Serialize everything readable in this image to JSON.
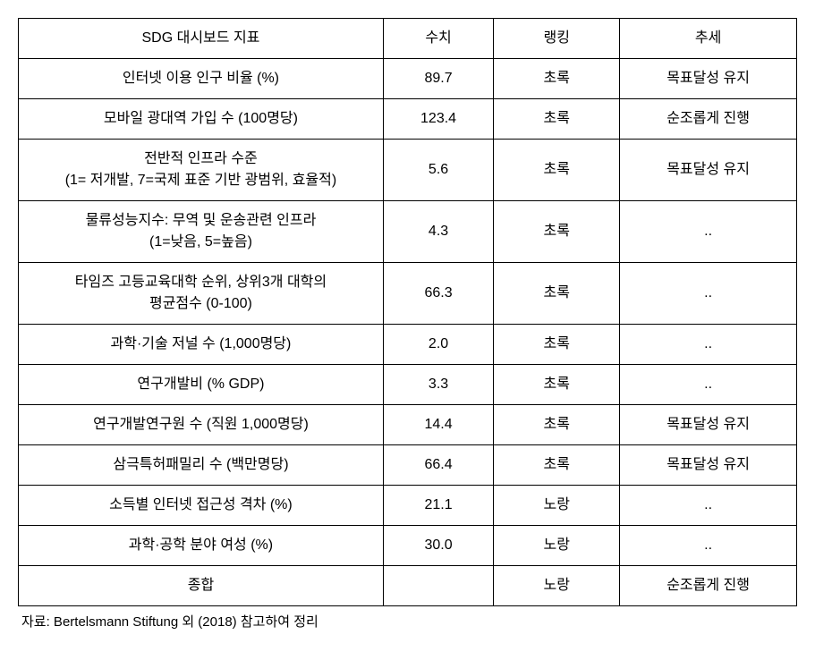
{
  "table": {
    "headers": {
      "indicator": "SDG 대시보드 지표",
      "value": "수치",
      "ranking": "랭킹",
      "trend": "추세"
    },
    "rows": [
      {
        "indicator": "인터넷 이용 인구 비율 (%)",
        "value": "89.7",
        "ranking": "초록",
        "trend": "목표달성 유지"
      },
      {
        "indicator": "모바일 광대역 가입 수 (100명당)",
        "value": "123.4",
        "ranking": "초록",
        "trend": "순조롭게 진행"
      },
      {
        "indicator": "전반적 인프라 수준\n(1= 저개발, 7=국제 표준 기반 광범위, 효율적)",
        "value": "5.6",
        "ranking": "초록",
        "trend": "목표달성 유지"
      },
      {
        "indicator": "물류성능지수: 무역 및 운송관련 인프라\n(1=낮음, 5=높음)",
        "value": "4.3",
        "ranking": "초록",
        "trend": ".."
      },
      {
        "indicator": "타임즈 고등교육대학 순위, 상위3개 대학의\n평균점수 (0-100)",
        "value": "66.3",
        "ranking": "초록",
        "trend": ".."
      },
      {
        "indicator": "과학·기술 저널 수 (1,000명당)",
        "value": "2.0",
        "ranking": "초록",
        "trend": ".."
      },
      {
        "indicator": "연구개발비 (% GDP)",
        "value": "3.3",
        "ranking": "초록",
        "trend": ".."
      },
      {
        "indicator": "연구개발연구원 수 (직원 1,000명당)",
        "value": "14.4",
        "ranking": "초록",
        "trend": "목표달성 유지"
      },
      {
        "indicator": "삼극특허패밀리 수 (백만명당)",
        "value": "66.4",
        "ranking": "초록",
        "trend": "목표달성 유지"
      },
      {
        "indicator": "소득별 인터넷 접근성 격차 (%)",
        "value": "21.1",
        "ranking": "노랑",
        "trend": ".."
      },
      {
        "indicator": "과학·공학 분야 여성 (%)",
        "value": "30.0",
        "ranking": "노랑",
        "trend": ".."
      },
      {
        "indicator": "종합",
        "value": "",
        "ranking": "노랑",
        "trend": "순조롭게 진행"
      }
    ],
    "column_widths": {
      "indicator": 410,
      "value": 110,
      "ranking": 130,
      "trend": 190
    },
    "styling": {
      "font_size": 16,
      "border_color": "#000000",
      "outer_border_width": 1.5,
      "inner_border_width": 1,
      "row_padding_vertical": 10,
      "row_padding_horizontal": 8,
      "text_align": "center",
      "background_color": "#ffffff",
      "text_color": "#000000"
    }
  },
  "source_note": "자료: Bertelsmann Stiftung 외 (2018) 참고하여 정리"
}
